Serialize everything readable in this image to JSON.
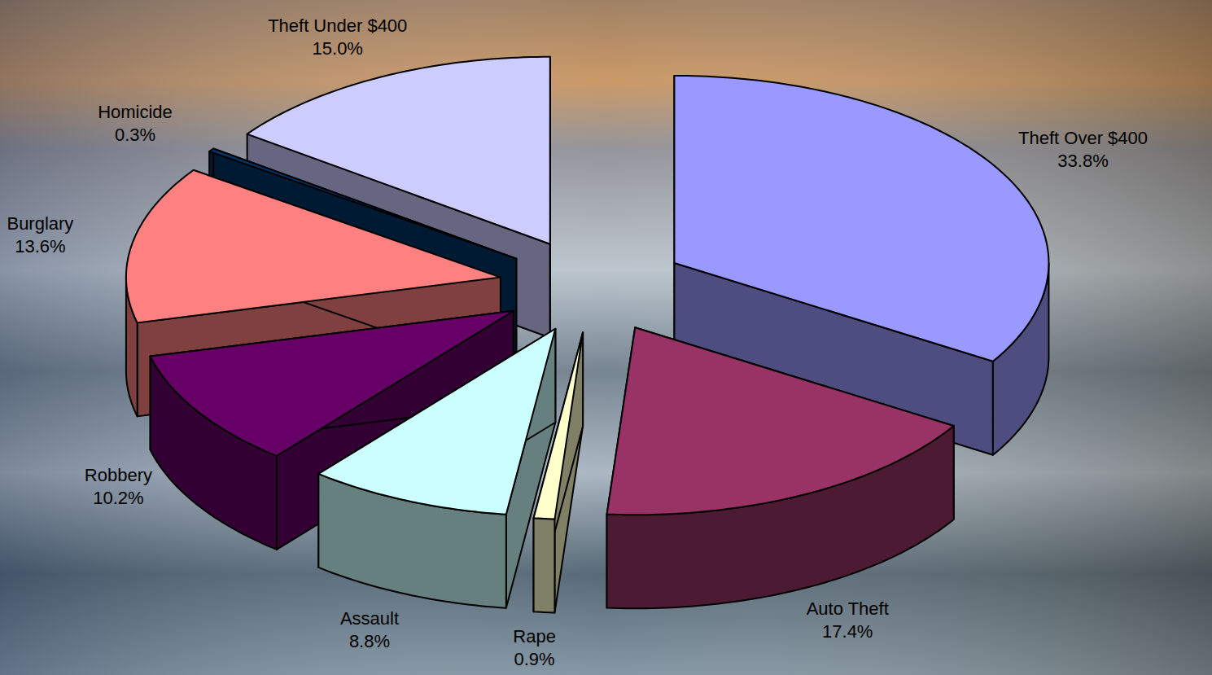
{
  "chart_data": {
    "type": "pie",
    "categories": [
      "Theft Over $400",
      "Auto Theft",
      "Rape",
      "Assault",
      "Robbery",
      "Burglary",
      "Homicide",
      "Theft Under $400"
    ],
    "values": [
      33.8,
      17.4,
      0.9,
      8.8,
      10.2,
      13.6,
      0.3,
      15.0
    ],
    "value_labels": [
      "33.8%",
      "17.4%",
      "0.9%",
      "8.8%",
      "10.2%",
      "13.6%",
      "0.3%",
      "15.0%"
    ],
    "colors": [
      "#9999ff",
      "#993366",
      "#ffffcc",
      "#ccffff",
      "#660066",
      "#ff8080",
      "#003366",
      "#ccccff"
    ],
    "data_labels": true
  }
}
